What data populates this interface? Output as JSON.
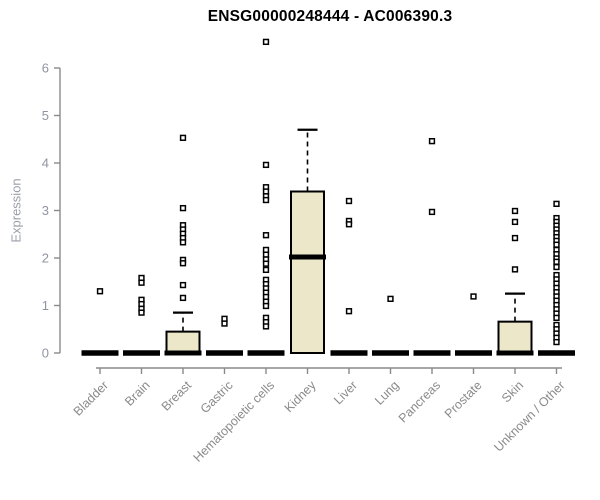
{
  "chart_data": {
    "type": "boxplot",
    "title": "ENSG00000248444 - AC006390.3",
    "ylabel": "Expression",
    "xlabel": "",
    "ylim": [
      0,
      6
    ],
    "yticks": [
      0,
      1,
      2,
      3,
      4,
      5,
      6
    ],
    "grid": false,
    "legend": "none",
    "colors": {
      "box_fill": "#ece7c9",
      "box_stroke": "#000000",
      "median": "#000000",
      "outlier_stroke": "#000000",
      "axis": "#8a8a8a",
      "tick_label": "#8f95a0",
      "category_label": "#8a8a8a",
      "title": "#000000"
    },
    "categories": [
      {
        "label": "Bladder",
        "q1": 0,
        "median": 0,
        "q3": 0,
        "whisker_high": null,
        "outliers": [
          1.3
        ]
      },
      {
        "label": "Brain",
        "q1": 0,
        "median": 0,
        "q3": 0,
        "whisker_high": null,
        "outliers": [
          1.58,
          1.48,
          1.12,
          1.03,
          0.93,
          0.85
        ]
      },
      {
        "label": "Breast",
        "q1": 0,
        "median": 0,
        "q3": 0.45,
        "whisker_high": 0.85,
        "outliers": [
          4.53,
          3.05,
          2.69,
          2.6,
          2.51,
          2.42,
          2.33,
          1.96,
          1.89,
          1.43,
          1.16
        ]
      },
      {
        "label": "Gastric",
        "q1": 0,
        "median": 0,
        "q3": 0,
        "whisker_high": null,
        "outliers": [
          0.72,
          0.62
        ]
      },
      {
        "label": "Hematopoietic cells",
        "q1": 0,
        "median": 0,
        "q3": 0,
        "whisker_high": null,
        "outliers": [
          6.55,
          3.96,
          3.49,
          3.4,
          3.3,
          3.22,
          2.48,
          2.17,
          2.07,
          1.97,
          1.88,
          1.75,
          1.54,
          1.45,
          1.36,
          1.27,
          1.18,
          1.08,
          0.99,
          0.74,
          0.65,
          0.56
        ]
      },
      {
        "label": "Kidney",
        "q1": 0,
        "median": 2.02,
        "q3": 3.4,
        "whisker_high": 4.7,
        "outliers": []
      },
      {
        "label": "Liver",
        "q1": 0,
        "median": 0,
        "q3": 0,
        "whisker_high": null,
        "outliers": [
          3.2,
          2.78,
          2.71,
          0.88
        ]
      },
      {
        "label": "Lung",
        "q1": 0,
        "median": 0,
        "q3": 0,
        "whisker_high": null,
        "outliers": [
          1.14
        ]
      },
      {
        "label": "Pancreas",
        "q1": 0,
        "median": 0,
        "q3": 0,
        "whisker_high": null,
        "outliers": [
          4.46,
          2.97
        ]
      },
      {
        "label": "Prostate",
        "q1": 0,
        "median": 0,
        "q3": 0,
        "whisker_high": null,
        "outliers": [
          1.19
        ]
      },
      {
        "label": "Skin",
        "q1": 0,
        "median": 0,
        "q3": 0.66,
        "whisker_high": 1.25,
        "outliers": [
          2.99,
          2.76,
          2.42,
          1.76
        ]
      },
      {
        "label": "Unknown / Other",
        "q1": 0,
        "median": 0,
        "q3": 0,
        "whisker_high": null,
        "outliers": [
          3.14,
          2.84,
          2.76,
          2.68,
          2.6,
          2.52,
          2.44,
          2.36,
          2.28,
          2.17,
          2.08,
          1.99,
          1.92,
          1.81,
          1.64,
          1.55,
          1.46,
          1.37,
          1.28,
          1.19,
          1.1,
          1.01,
          0.92,
          0.83,
          0.74,
          0.59,
          0.5,
          0.41,
          0.32,
          0.23
        ]
      }
    ]
  }
}
